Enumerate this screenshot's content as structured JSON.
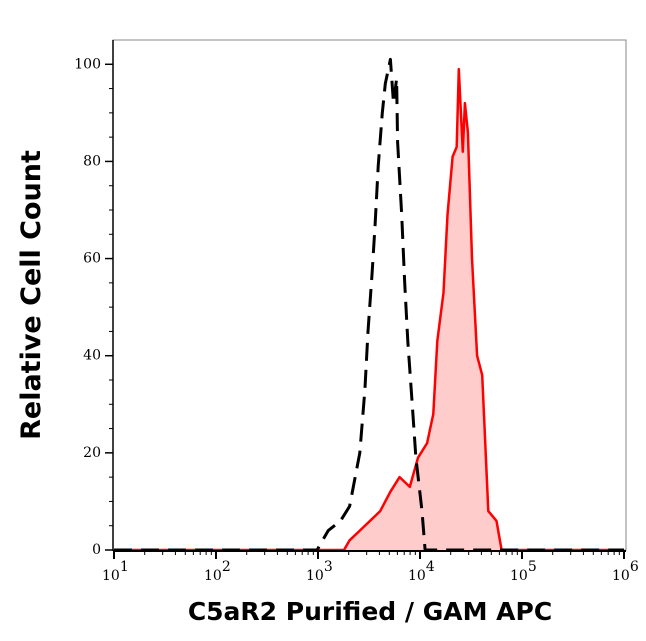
{
  "chart_data": {
    "type": "area",
    "title": "",
    "xlabel": "C5aR2 Purified / GAM APC",
    "ylabel": "Relative Cell Count",
    "x_scale": "log",
    "xlim": [
      10,
      1000000
    ],
    "ylim": [
      0,
      105
    ],
    "x_ticks": [
      {
        "base": "10",
        "exp": "1"
      },
      {
        "base": "10",
        "exp": "2"
      },
      {
        "base": "10",
        "exp": "3"
      },
      {
        "base": "10",
        "exp": "4"
      },
      {
        "base": "10",
        "exp": "5"
      },
      {
        "base": "10",
        "exp": "6"
      }
    ],
    "y_ticks": [
      "0",
      "20",
      "40",
      "60",
      "80",
      "100"
    ],
    "grid": false,
    "series": [
      {
        "style": "solid-filled",
        "color": "#ff0000",
        "fill": "#ffcccc",
        "points": [
          [
            10,
            0
          ],
          [
            1800,
            0
          ],
          [
            2040,
            2
          ],
          [
            2570,
            4
          ],
          [
            4070,
            8
          ],
          [
            5130,
            12
          ],
          [
            6310,
            15
          ],
          [
            7940,
            13
          ],
          [
            9550,
            19
          ],
          [
            11750,
            22
          ],
          [
            13490,
            28
          ],
          [
            14790,
            43
          ],
          [
            16980,
            53
          ],
          [
            18620,
            69
          ],
          [
            20890,
            81
          ],
          [
            22910,
            83
          ],
          [
            23990,
            99
          ],
          [
            26300,
            82
          ],
          [
            27540,
            92
          ],
          [
            29510,
            86
          ],
          [
            32360,
            60
          ],
          [
            36310,
            40
          ],
          [
            40740,
            36
          ],
          [
            46770,
            8
          ],
          [
            56230,
            6
          ],
          [
            63100,
            0
          ],
          [
            1000000,
            0
          ]
        ]
      },
      {
        "style": "dashed",
        "color": "#000000",
        "points": [
          [
            10,
            0
          ],
          [
            980,
            0
          ],
          [
            1260,
            4
          ],
          [
            1660,
            6
          ],
          [
            2040,
            9
          ],
          [
            2570,
            20
          ],
          [
            2880,
            33
          ],
          [
            3090,
            45
          ],
          [
            3390,
            57
          ],
          [
            3630,
            67
          ],
          [
            3890,
            79
          ],
          [
            4270,
            90
          ],
          [
            4570,
            96
          ],
          [
            5130,
            101
          ],
          [
            5500,
            92
          ],
          [
            5890,
            97
          ],
          [
            6030,
            84
          ],
          [
            6610,
            69
          ],
          [
            7080,
            55
          ],
          [
            7590,
            43
          ],
          [
            8320,
            31
          ],
          [
            9120,
            19
          ],
          [
            10470,
            8
          ],
          [
            11220,
            0
          ],
          [
            1000000,
            0
          ]
        ]
      }
    ]
  }
}
